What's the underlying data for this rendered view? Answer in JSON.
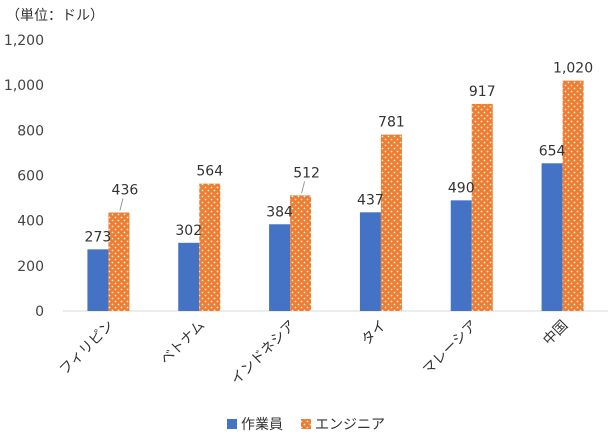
{
  "chart_data": {
    "type": "bar",
    "unit_label": "（単位：ドル）",
    "categories": [
      "フィリピン",
      "ベトナム",
      "インドネシア",
      "タイ",
      "マレーシア",
      "中国"
    ],
    "series": [
      {
        "name": "作業員",
        "values": [
          273,
          302,
          384,
          437,
          490,
          654
        ],
        "value_labels": [
          "273",
          "302",
          "384",
          "437",
          "490",
          "654"
        ],
        "color": "#4472C4",
        "pattern": "solid"
      },
      {
        "name": "エンジニア",
        "values": [
          436,
          564,
          512,
          781,
          917,
          1020
        ],
        "value_labels": [
          "436",
          "564",
          "512",
          "781",
          "917",
          "1,020"
        ],
        "color": "#ED7D31",
        "pattern": "dotted"
      }
    ],
    "y_ticks": [
      "0",
      "200",
      "400",
      "600",
      "800",
      "1,000",
      "1,200"
    ],
    "ylim": [
      0,
      1200
    ],
    "grid": false,
    "legend_position": "bottom"
  }
}
